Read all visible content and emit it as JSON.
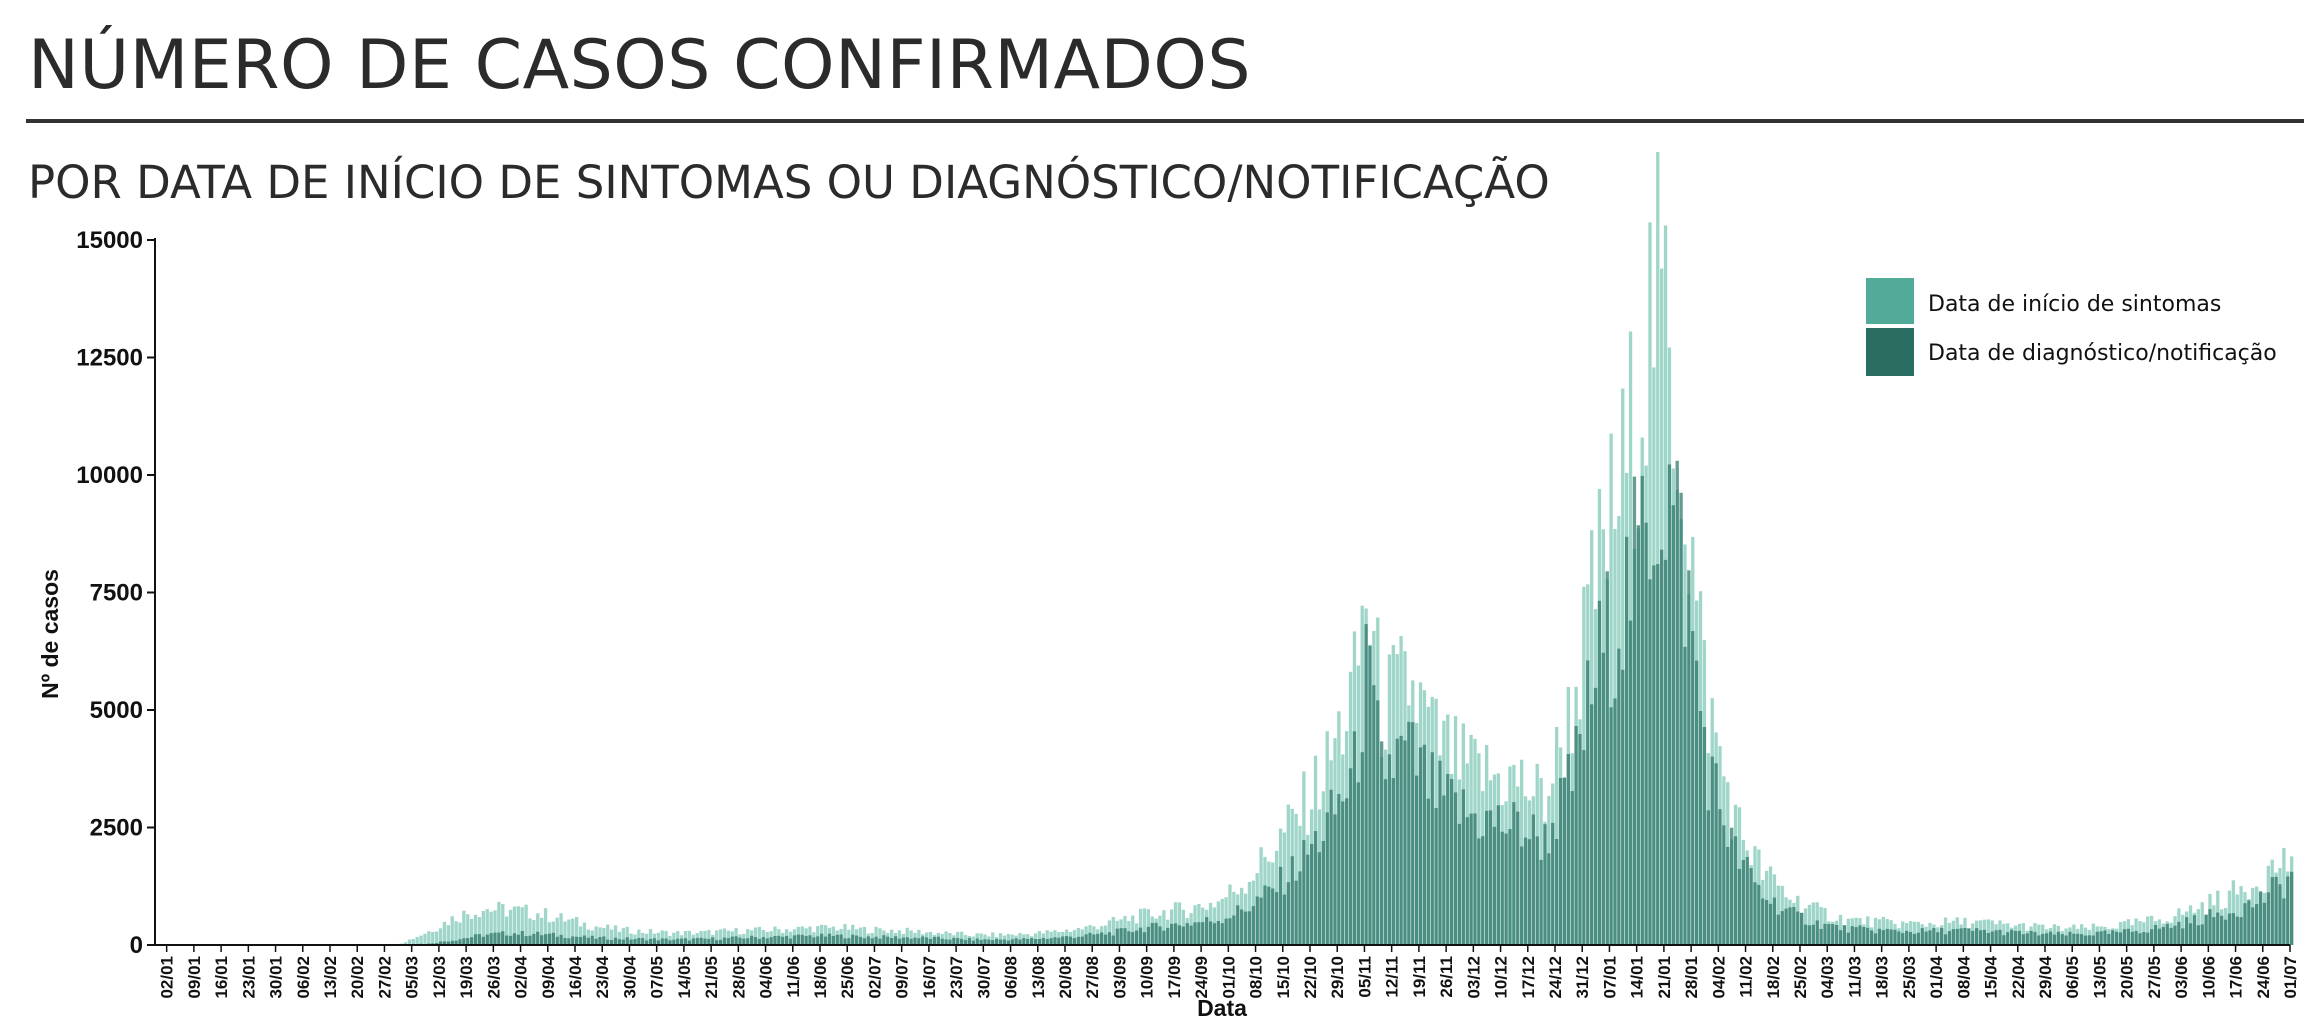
{
  "header": {
    "title": "NÚMERO DE CASOS CONFIRMADOS",
    "subtitle": "POR DATA DE INÍCIO DE SINTOMAS OU DIAGNÓSTICO/NOTIFICAÇÃO"
  },
  "chart_data": {
    "type": "bar",
    "xlabel": "Data",
    "ylabel": "Nº de casos",
    "ylim": [
      0,
      15000
    ],
    "yticks": [
      0,
      2500,
      5000,
      7500,
      10000,
      12500,
      15000
    ],
    "ytick_labels": [
      "0",
      "2500",
      "5000",
      "7500",
      "10000",
      "12500",
      "15000"
    ],
    "x_start": "2020-01-02",
    "x_end": "2021-07-04",
    "x_tick_labels": [
      "02/01",
      "09/01",
      "16/01",
      "23/01",
      "30/01",
      "06/02",
      "13/02",
      "20/02",
      "27/02",
      "05/03",
      "12/03",
      "19/03",
      "26/03",
      "02/04",
      "09/04",
      "16/04",
      "23/04",
      "30/04",
      "07/05",
      "14/05",
      "21/05",
      "28/05",
      "04/06",
      "11/06",
      "18/06",
      "25/06",
      "02/07",
      "09/07",
      "16/07",
      "23/07",
      "30/07",
      "06/08",
      "13/08",
      "20/08",
      "27/08",
      "03/09",
      "10/09",
      "17/09",
      "24/09",
      "01/10",
      "08/10",
      "15/10",
      "22/10",
      "29/10",
      "05/11",
      "12/11",
      "19/11",
      "26/11",
      "03/12",
      "10/12",
      "17/12",
      "24/12",
      "31/12",
      "07/01",
      "14/01",
      "21/01",
      "28/01",
      "04/02",
      "11/02",
      "18/02",
      "25/02",
      "04/03",
      "11/03",
      "18/03",
      "25/03",
      "01/04",
      "08/04",
      "15/04",
      "22/04",
      "29/04",
      "06/05",
      "13/05",
      "20/05",
      "27/05",
      "03/06",
      "10/06",
      "17/06",
      "24/06",
      "01/07"
    ],
    "legend_position": "top-right",
    "series": [
      {
        "name": "Data de início de sintomas",
        "color": "#9fd6c9",
        "legend_color": "#52aa98",
        "points": [
          [
            "2020-03-01",
            0
          ],
          [
            "2020-03-05",
            40
          ],
          [
            "2020-03-12",
            300
          ],
          [
            "2020-03-19",
            620
          ],
          [
            "2020-03-26",
            800
          ],
          [
            "2020-04-02",
            760
          ],
          [
            "2020-04-09",
            700
          ],
          [
            "2020-04-16",
            560
          ],
          [
            "2020-04-23",
            420
          ],
          [
            "2020-04-30",
            330
          ],
          [
            "2020-05-07",
            290
          ],
          [
            "2020-05-14",
            260
          ],
          [
            "2020-05-21",
            270
          ],
          [
            "2020-05-28",
            300
          ],
          [
            "2020-06-04",
            320
          ],
          [
            "2020-06-11",
            340
          ],
          [
            "2020-06-18",
            370
          ],
          [
            "2020-06-25",
            380
          ],
          [
            "2020-07-02",
            340
          ],
          [
            "2020-07-09",
            320
          ],
          [
            "2020-07-16",
            290
          ],
          [
            "2020-07-23",
            250
          ],
          [
            "2020-07-30",
            220
          ],
          [
            "2020-08-06",
            220
          ],
          [
            "2020-08-13",
            240
          ],
          [
            "2020-08-20",
            290
          ],
          [
            "2020-08-27",
            360
          ],
          [
            "2020-09-03",
            480
          ],
          [
            "2020-09-10",
            620
          ],
          [
            "2020-09-17",
            720
          ],
          [
            "2020-09-24",
            800
          ],
          [
            "2020-10-01",
            950
          ],
          [
            "2020-10-08",
            1400
          ],
          [
            "2020-10-15",
            2100
          ],
          [
            "2020-10-22",
            2900
          ],
          [
            "2020-10-29",
            3900
          ],
          [
            "2020-11-05",
            5600
          ],
          [
            "2020-11-08",
            7700
          ],
          [
            "2020-11-12",
            5200
          ],
          [
            "2020-11-19",
            5700
          ],
          [
            "2020-11-26",
            4500
          ],
          [
            "2020-12-03",
            3900
          ],
          [
            "2020-12-10",
            3700
          ],
          [
            "2020-12-17",
            3600
          ],
          [
            "2020-12-24",
            3200
          ],
          [
            "2020-12-31",
            5200
          ],
          [
            "2021-01-07",
            8300
          ],
          [
            "2021-01-14",
            10500
          ],
          [
            "2021-01-18",
            12500
          ],
          [
            "2021-01-21",
            14200
          ],
          [
            "2021-01-24",
            13500
          ],
          [
            "2021-01-28",
            11000
          ],
          [
            "2021-02-01",
            7400
          ],
          [
            "2021-02-04",
            5200
          ],
          [
            "2021-02-11",
            2700
          ],
          [
            "2021-02-18",
            1600
          ],
          [
            "2021-02-25",
            1050
          ],
          [
            "2021-03-04",
            750
          ],
          [
            "2021-03-11",
            560
          ],
          [
            "2021-03-18",
            510
          ],
          [
            "2021-03-25",
            470
          ],
          [
            "2021-04-01",
            460
          ],
          [
            "2021-04-08",
            500
          ],
          [
            "2021-04-15",
            490
          ],
          [
            "2021-04-22",
            440
          ],
          [
            "2021-04-29",
            400
          ],
          [
            "2021-05-06",
            360
          ],
          [
            "2021-05-13",
            370
          ],
          [
            "2021-05-20",
            420
          ],
          [
            "2021-05-27",
            500
          ],
          [
            "2021-06-03",
            620
          ],
          [
            "2021-06-10",
            820
          ],
          [
            "2021-06-17",
            1050
          ],
          [
            "2021-06-24",
            1350
          ],
          [
            "2021-07-01",
            1800
          ],
          [
            "2021-07-04",
            1900
          ]
        ]
      },
      {
        "name": "Data de diagnóstico/notificação",
        "color": "#2a7566",
        "legend_color": "#2a6e61",
        "points": [
          [
            "2020-03-01",
            0
          ],
          [
            "2020-03-12",
            30
          ],
          [
            "2020-03-19",
            120
          ],
          [
            "2020-03-26",
            220
          ],
          [
            "2020-04-02",
            260
          ],
          [
            "2020-04-09",
            240
          ],
          [
            "2020-04-16",
            200
          ],
          [
            "2020-04-23",
            160
          ],
          [
            "2020-04-30",
            140
          ],
          [
            "2020-05-07",
            130
          ],
          [
            "2020-05-14",
            120
          ],
          [
            "2020-05-21",
            130
          ],
          [
            "2020-05-28",
            150
          ],
          [
            "2020-06-04",
            170
          ],
          [
            "2020-06-11",
            180
          ],
          [
            "2020-06-18",
            200
          ],
          [
            "2020-06-25",
            200
          ],
          [
            "2020-07-02",
            180
          ],
          [
            "2020-07-09",
            170
          ],
          [
            "2020-07-16",
            160
          ],
          [
            "2020-07-23",
            140
          ],
          [
            "2020-07-30",
            120
          ],
          [
            "2020-08-06",
            120
          ],
          [
            "2020-08-13",
            130
          ],
          [
            "2020-08-20",
            160
          ],
          [
            "2020-08-27",
            200
          ],
          [
            "2020-09-03",
            260
          ],
          [
            "2020-09-10",
            350
          ],
          [
            "2020-09-17",
            420
          ],
          [
            "2020-09-24",
            480
          ],
          [
            "2020-10-01",
            560
          ],
          [
            "2020-10-08",
            800
          ],
          [
            "2020-10-15",
            1200
          ],
          [
            "2020-10-22",
            1800
          ],
          [
            "2020-10-29",
            2600
          ],
          [
            "2020-11-05",
            3800
          ],
          [
            "2020-11-08",
            5900
          ],
          [
            "2020-11-12",
            3900
          ],
          [
            "2020-11-19",
            4200
          ],
          [
            "2020-11-26",
            3300
          ],
          [
            "2020-12-03",
            2900
          ],
          [
            "2020-12-10",
            2700
          ],
          [
            "2020-12-17",
            2600
          ],
          [
            "2020-12-24",
            2300
          ],
          [
            "2020-12-31",
            3600
          ],
          [
            "2021-01-07",
            6300
          ],
          [
            "2021-01-14",
            7700
          ],
          [
            "2021-01-18",
            8800
          ],
          [
            "2021-01-21",
            9700
          ],
          [
            "2021-01-24",
            10100
          ],
          [
            "2021-01-28",
            8800
          ],
          [
            "2021-02-01",
            5900
          ],
          [
            "2021-02-04",
            3900
          ],
          [
            "2021-02-11",
            2000
          ],
          [
            "2021-02-18",
            1100
          ],
          [
            "2021-02-25",
            700
          ],
          [
            "2021-03-04",
            480
          ],
          [
            "2021-03-11",
            360
          ],
          [
            "2021-03-18",
            330
          ],
          [
            "2021-03-25",
            300
          ],
          [
            "2021-04-01",
            300
          ],
          [
            "2021-04-08",
            320
          ],
          [
            "2021-04-15",
            310
          ],
          [
            "2021-04-22",
            280
          ],
          [
            "2021-04-29",
            250
          ],
          [
            "2021-05-06",
            230
          ],
          [
            "2021-05-13",
            240
          ],
          [
            "2021-05-20",
            270
          ],
          [
            "2021-05-27",
            330
          ],
          [
            "2021-06-03",
            420
          ],
          [
            "2021-06-10",
            560
          ],
          [
            "2021-06-17",
            720
          ],
          [
            "2021-06-24",
            900
          ],
          [
            "2021-07-01",
            1300
          ],
          [
            "2021-07-04",
            1500
          ]
        ]
      }
    ]
  }
}
